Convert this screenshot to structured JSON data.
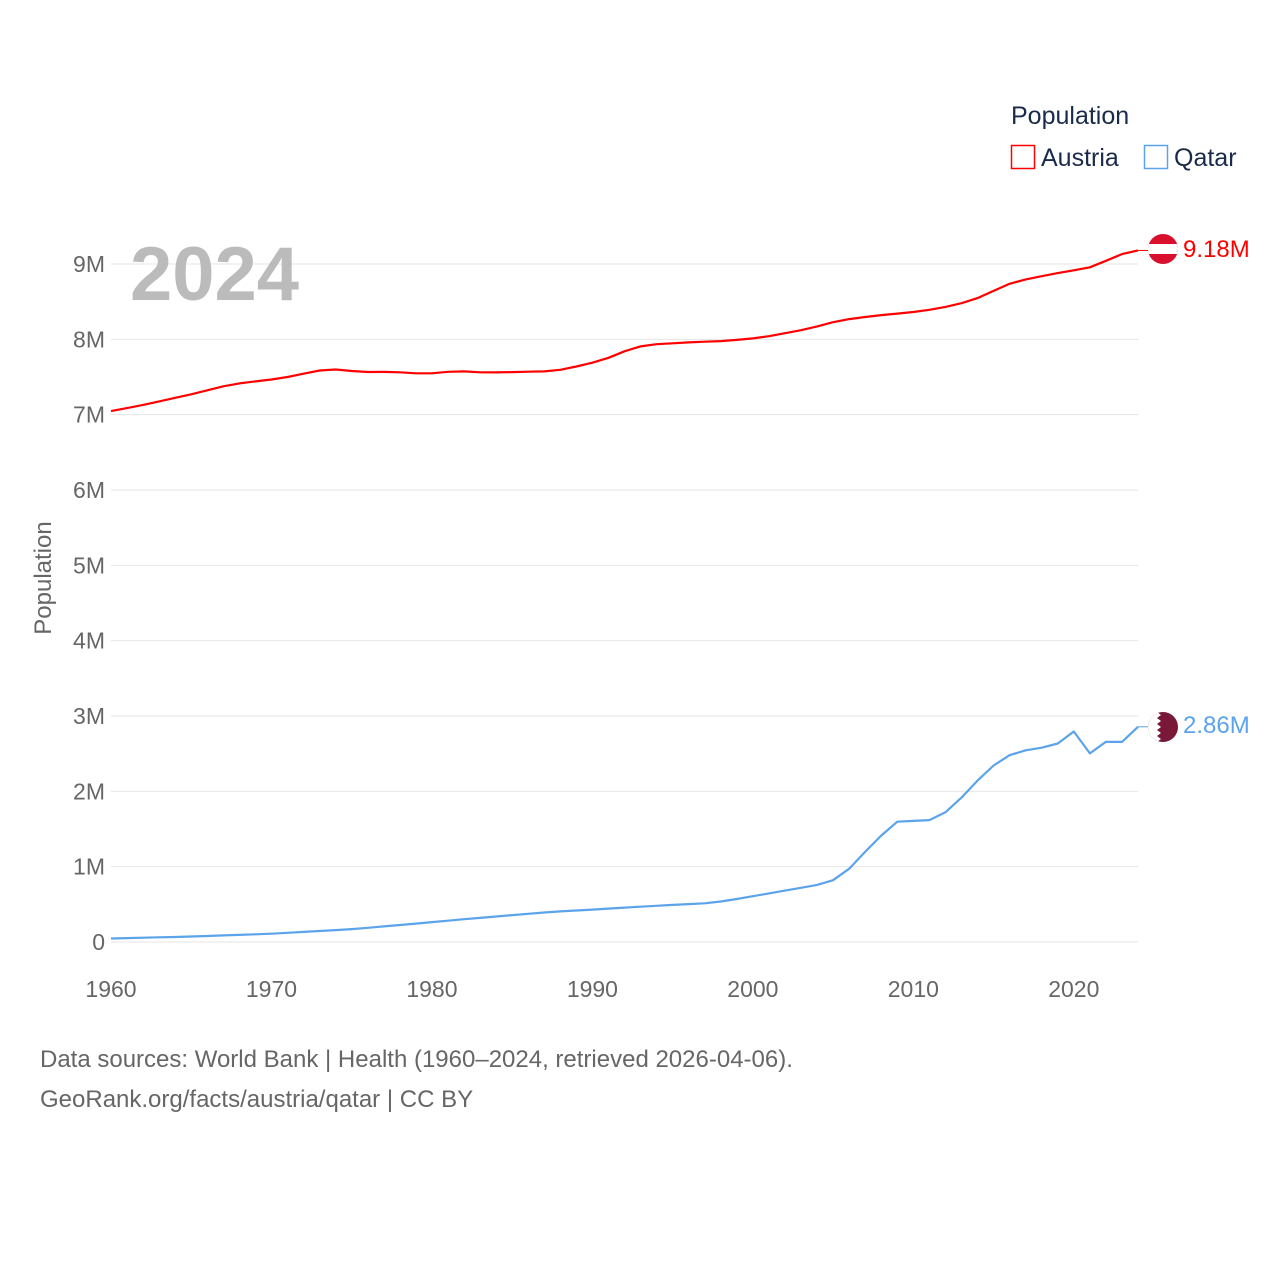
{
  "chart_data": {
    "type": "line",
    "year_label": "2024",
    "ylabel": "Population",
    "legend_title": "Population",
    "legend_placement": "top-right",
    "xlim": [
      1960,
      2024
    ],
    "ylim": [
      0,
      9000000
    ],
    "x_ticks": [
      "1960",
      "1970",
      "1980",
      "1990",
      "2000",
      "2010",
      "2020"
    ],
    "y_ticks": [
      "0",
      "1M",
      "2M",
      "3M",
      "4M",
      "5M",
      "6M",
      "7M",
      "8M",
      "9M"
    ],
    "x": [
      1960,
      1961,
      1962,
      1963,
      1964,
      1965,
      1966,
      1967,
      1968,
      1969,
      1970,
      1971,
      1972,
      1973,
      1974,
      1975,
      1976,
      1977,
      1978,
      1979,
      1980,
      1981,
      1982,
      1983,
      1984,
      1985,
      1986,
      1987,
      1988,
      1989,
      1990,
      1991,
      1992,
      1993,
      1994,
      1995,
      1996,
      1997,
      1998,
      1999,
      2000,
      2001,
      2002,
      2003,
      2004,
      2005,
      2006,
      2007,
      2008,
      2009,
      2010,
      2011,
      2012,
      2013,
      2014,
      2015,
      2016,
      2017,
      2018,
      2019,
      2020,
      2021,
      2022,
      2023,
      2024
    ],
    "series": [
      {
        "name": "Austria",
        "color": "#ff0000",
        "end_label": "9.18M",
        "values_millions": [
          7.048,
          7.087,
          7.13,
          7.176,
          7.224,
          7.271,
          7.323,
          7.377,
          7.415,
          7.441,
          7.467,
          7.5,
          7.544,
          7.586,
          7.599,
          7.579,
          7.566,
          7.568,
          7.562,
          7.549,
          7.549,
          7.569,
          7.574,
          7.562,
          7.561,
          7.565,
          7.57,
          7.575,
          7.595,
          7.64,
          7.69,
          7.755,
          7.841,
          7.906,
          7.936,
          7.948,
          7.959,
          7.968,
          7.977,
          7.992,
          8.012,
          8.042,
          8.082,
          8.121,
          8.172,
          8.228,
          8.269,
          8.296,
          8.322,
          8.341,
          8.363,
          8.392,
          8.43,
          8.479,
          8.547,
          8.643,
          8.737,
          8.796,
          8.838,
          8.879,
          8.917,
          8.956,
          9.042,
          9.131,
          9.18
        ]
      },
      {
        "name": "Qatar",
        "color": "#5ba3ea",
        "end_label": "2.86M",
        "values_millions": [
          0.047,
          0.052,
          0.057,
          0.062,
          0.067,
          0.073,
          0.08,
          0.087,
          0.094,
          0.102,
          0.11,
          0.122,
          0.134,
          0.146,
          0.158,
          0.171,
          0.189,
          0.207,
          0.225,
          0.244,
          0.264,
          0.283,
          0.302,
          0.32,
          0.339,
          0.357,
          0.375,
          0.392,
          0.406,
          0.418,
          0.43,
          0.444,
          0.457,
          0.469,
          0.481,
          0.492,
          0.503,
          0.514,
          0.537,
          0.571,
          0.608,
          0.645,
          0.682,
          0.72,
          0.758,
          0.821,
          0.973,
          1.198,
          1.414,
          1.597,
          1.608,
          1.618,
          1.722,
          1.917,
          2.143,
          2.343,
          2.479,
          2.545,
          2.579,
          2.635,
          2.794,
          2.504,
          2.657,
          2.656,
          2.857
        ]
      }
    ]
  },
  "footer": {
    "line1": "Data sources: World Bank | Health (1960–2024, retrieved 2026-04-06).",
    "line2": "GeoRank.org/facts/austria/qatar | CC BY"
  }
}
